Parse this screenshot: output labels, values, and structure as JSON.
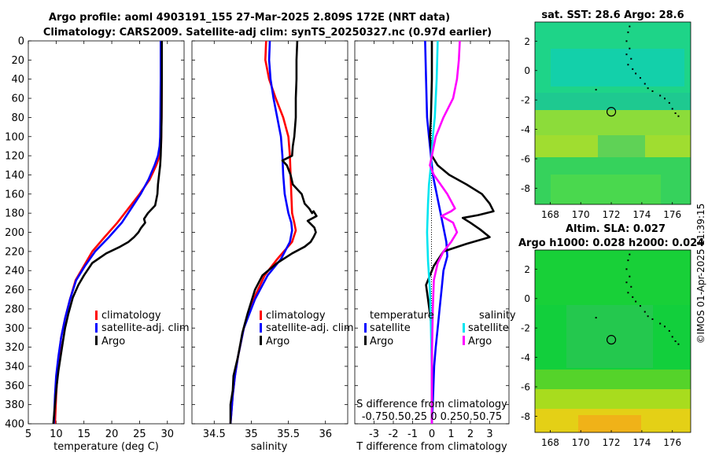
{
  "figure": {
    "title_line1": "Argo profile: aoml 4903191_155 27-Mar-2025 2.809S 172E (NRT data)",
    "title_line2": "Climatology: CARS2009. Satellite-adj clim: synTS_20250327.nc (0.97d earlier)",
    "credit": "©IMOS 01-Apr-2025 11:39:15"
  },
  "colors": {
    "climatology": "#ff0000",
    "satellite": "#0000ff",
    "argo": "#000000",
    "sal_satellite": "#00e5f0",
    "sal_argo": "#ff00ff"
  },
  "chart_data": [
    {
      "type": "line",
      "id": "temperature",
      "xlabel": "temperature (deg C)",
      "ylabel": "",
      "xlim": [
        5,
        33
      ],
      "ylim": [
        400,
        0
      ],
      "xticks": [
        5,
        10,
        15,
        20,
        25,
        30
      ],
      "yticks": [
        0,
        20,
        40,
        60,
        80,
        100,
        120,
        140,
        160,
        180,
        200,
        220,
        240,
        260,
        280,
        300,
        320,
        340,
        360,
        380,
        400
      ],
      "legend": [
        "climatology",
        "satellite-adj. clim",
        "Argo"
      ],
      "series": [
        {
          "name": "climatology",
          "x": [
            29.0,
            29.0,
            28.95,
            28.9,
            28.85,
            28.6,
            28.0,
            26.8,
            25.0,
            23.0,
            21.0,
            18.7,
            16.5,
            15.0,
            13.5,
            12.5,
            11.6,
            10.9,
            10.5,
            10.2,
            10.0,
            9.8
          ],
          "y": [
            0,
            40,
            80,
            100,
            110,
            120,
            130,
            145,
            160,
            175,
            190,
            205,
            220,
            235,
            250,
            270,
            290,
            310,
            330,
            350,
            370,
            400
          ]
        },
        {
          "name": "satellite-adj. clim",
          "x": [
            28.8,
            28.8,
            28.75,
            28.7,
            28.6,
            28.3,
            27.7,
            26.6,
            25.2,
            23.5,
            21.8,
            19.5,
            17.0,
            15.2,
            13.6,
            12.5,
            11.6,
            10.9,
            10.4,
            10.0,
            9.8,
            9.6
          ],
          "y": [
            0,
            40,
            80,
            100,
            110,
            120,
            130,
            145,
            160,
            175,
            190,
            205,
            220,
            235,
            250,
            270,
            290,
            310,
            330,
            350,
            370,
            400
          ]
        },
        {
          "name": "Argo",
          "x": [
            29.0,
            29.0,
            28.95,
            28.9,
            28.8,
            28.7,
            28.5,
            28.3,
            28.2,
            27.8,
            26.5,
            25.8,
            26.0,
            25.2,
            24.8,
            24.0,
            23.0,
            21.5,
            19.0,
            16.5,
            15.0,
            14.0,
            13.0,
            12.2,
            11.6,
            11.2,
            10.8,
            10.4,
            10.1,
            9.8,
            9.5
          ],
          "y": [
            0,
            40,
            80,
            100,
            120,
            130,
            140,
            150,
            160,
            172,
            180,
            186,
            190,
            196,
            200,
            205,
            210,
            215,
            222,
            232,
            245,
            255,
            268,
            285,
            300,
            315,
            330,
            345,
            360,
            380,
            400
          ]
        }
      ]
    },
    {
      "type": "line",
      "id": "salinity",
      "xlabel": "salinity",
      "xlim": [
        34.2,
        36.3
      ],
      "ylim": [
        400,
        0
      ],
      "xticks": [
        34.5,
        35,
        35.5,
        36
      ],
      "legend": [
        "climatology",
        "satellite-adj. clim",
        "Argo"
      ],
      "series": [
        {
          "name": "climatology",
          "x": [
            35.2,
            35.19,
            35.24,
            35.33,
            35.43,
            35.5,
            35.52,
            35.53,
            35.54,
            35.55,
            35.58,
            35.6,
            35.55,
            35.35,
            35.18,
            35.03,
            34.9,
            34.82,
            34.78,
            34.75,
            34.73,
            34.72
          ],
          "y": [
            0,
            20,
            40,
            60,
            80,
            100,
            120,
            140,
            160,
            180,
            190,
            198,
            210,
            228,
            245,
            270,
            300,
            330,
            350,
            370,
            390,
            400
          ]
        },
        {
          "name": "satellite-adj. clim",
          "x": [
            35.25,
            35.24,
            35.26,
            35.3,
            35.35,
            35.4,
            35.42,
            35.43,
            35.45,
            35.5,
            35.54,
            35.55,
            35.52,
            35.4,
            35.22,
            35.05,
            34.9,
            34.82,
            34.78,
            34.75,
            34.73,
            34.72
          ],
          "y": [
            0,
            20,
            40,
            60,
            80,
            100,
            120,
            140,
            160,
            180,
            190,
            198,
            210,
            228,
            245,
            270,
            300,
            330,
            350,
            370,
            390,
            400
          ]
        },
        {
          "name": "Argo",
          "x": [
            35.62,
            35.61,
            35.61,
            35.6,
            35.6,
            35.58,
            35.56,
            35.55,
            35.42,
            35.48,
            35.53,
            35.56,
            35.68,
            35.72,
            35.78,
            35.82,
            35.84,
            35.88,
            35.76,
            35.85,
            35.87,
            35.84,
            35.8,
            35.72,
            35.55,
            35.35,
            35.15,
            35.05,
            34.95,
            34.88,
            34.82,
            34.76,
            34.75,
            34.72,
            34.72
          ],
          "y": [
            0,
            20,
            40,
            60,
            80,
            100,
            110,
            120,
            125,
            130,
            140,
            150,
            160,
            170,
            175,
            180,
            178,
            183,
            188,
            195,
            200,
            205,
            210,
            215,
            222,
            232,
            245,
            260,
            285,
            305,
            330,
            350,
            365,
            380,
            400
          ]
        }
      ]
    },
    {
      "type": "line",
      "id": "difference",
      "xlabel": "T difference from climatology",
      "top_xlabel": "S difference from climatology",
      "top_ticklabels": "-0.750.50.25 0  0.250.50.75",
      "xlim": [
        -4,
        4
      ],
      "ylim": [
        400,
        0
      ],
      "xticks": [
        -3,
        -2,
        -1,
        0,
        1,
        2,
        3
      ],
      "legend_title_left": "temperature",
      "legend_title_right": "salinity",
      "legend_left": [
        "satellite",
        "Argo"
      ],
      "legend_right": [
        "satellite",
        "Argo"
      ],
      "series": [
        {
          "name": "T satellite",
          "x": [
            -0.35,
            -0.3,
            -0.25,
            -0.15,
            -0.05,
            0.05,
            0.2,
            0.35,
            0.55,
            0.75,
            0.8,
            0.6,
            0.5,
            0.4,
            0.3,
            0.2,
            0.12,
            0.08,
            0.05,
            0.02,
            0.0
          ],
          "y": [
            0,
            40,
            80,
            100,
            120,
            140,
            155,
            170,
            190,
            210,
            225,
            240,
            260,
            280,
            300,
            320,
            340,
            360,
            380,
            390,
            400
          ]
        },
        {
          "name": "T Argo",
          "x": [
            0.0,
            0.0,
            -0.05,
            -0.1,
            0.0,
            0.3,
            0.9,
            1.8,
            2.6,
            3.0,
            3.2,
            2.4,
            1.6,
            2.0,
            2.5,
            3.0,
            1.8,
            0.6,
            0.1,
            -0.3,
            -0.2,
            0.0,
            0.0
          ],
          "y": [
            0,
            40,
            80,
            100,
            120,
            130,
            140,
            150,
            160,
            170,
            178,
            182,
            185,
            190,
            197,
            205,
            212,
            220,
            235,
            255,
            270,
            300,
            400
          ]
        },
        {
          "name": "S satellite",
          "x": [
            0.3,
            0.25,
            0.15,
            0.05,
            -0.05,
            -0.15,
            -0.2,
            -0.25,
            -0.2,
            -0.1,
            -0.05,
            0.0,
            0.0
          ],
          "y": [
            0,
            40,
            80,
            100,
            130,
            150,
            170,
            200,
            230,
            260,
            300,
            350,
            400
          ]
        },
        {
          "name": "S Argo",
          "x": [
            1.45,
            1.4,
            1.3,
            1.1,
            0.6,
            0.2,
            0.0,
            -0.1,
            0.1,
            0.8,
            1.2,
            1.0,
            0.5,
            1.1,
            1.3,
            1.0,
            0.6,
            0.3,
            0.1,
            0.05,
            0.0,
            0.0
          ],
          "y": [
            0,
            20,
            40,
            60,
            80,
            100,
            120,
            130,
            140,
            160,
            175,
            178,
            183,
            190,
            200,
            210,
            220,
            232,
            250,
            280,
            330,
            400
          ]
        }
      ]
    },
    {
      "type": "heatmap",
      "id": "sst_map",
      "title": "sat. SST: 28.6 Argo: 28.6",
      "xlim": [
        167,
        177.2
      ],
      "ylim": [
        -9.1,
        3.3
      ],
      "xticks": [
        168,
        170,
        172,
        174,
        176
      ],
      "yticks": [
        2,
        0,
        -2,
        -4,
        -6,
        -8
      ],
      "marker": {
        "lon": 172,
        "lat": -2.8
      }
    },
    {
      "type": "heatmap",
      "id": "sla_map",
      "title_line1": "Altim. SLA: 0.027",
      "title_line2": "Argo h1000: 0.028 h2000: 0.024",
      "xlim": [
        167,
        177.2
      ],
      "ylim": [
        -9.1,
        3.3
      ],
      "xticks": [
        168,
        170,
        172,
        174,
        176
      ],
      "yticks": [
        2,
        0,
        -2,
        -4,
        -6,
        -8
      ],
      "marker": {
        "lon": 172,
        "lat": -2.8
      }
    }
  ]
}
